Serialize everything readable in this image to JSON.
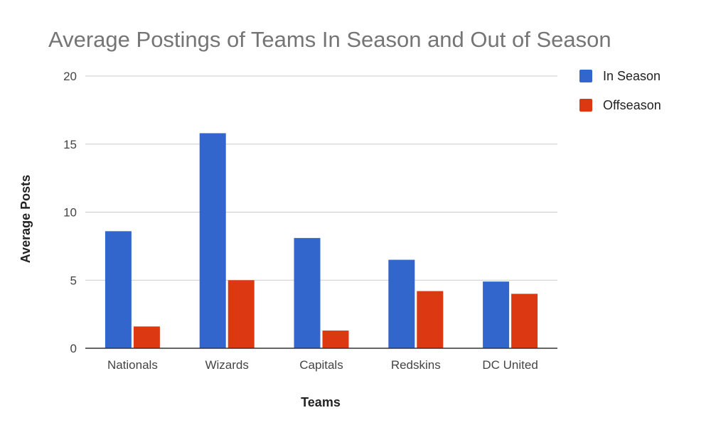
{
  "chart_data": {
    "type": "bar",
    "title": "Average Postings of Teams In Season and Out of Season",
    "xlabel": "Teams",
    "ylabel": "Average Posts",
    "categories": [
      "Nationals",
      "Wizards",
      "Capitals",
      "Redskins",
      "DC United"
    ],
    "series": [
      {
        "name": "In Season",
        "color": "#3366cc",
        "values": [
          8.6,
          15.8,
          8.1,
          6.5,
          4.9
        ]
      },
      {
        "name": "Offseason",
        "color": "#dc3912",
        "values": [
          1.6,
          5.0,
          1.3,
          4.2,
          4.0
        ]
      }
    ],
    "ylim": [
      0,
      20
    ],
    "yticks": [
      0,
      5,
      10,
      15,
      20
    ],
    "grid": true,
    "legend": "right"
  }
}
